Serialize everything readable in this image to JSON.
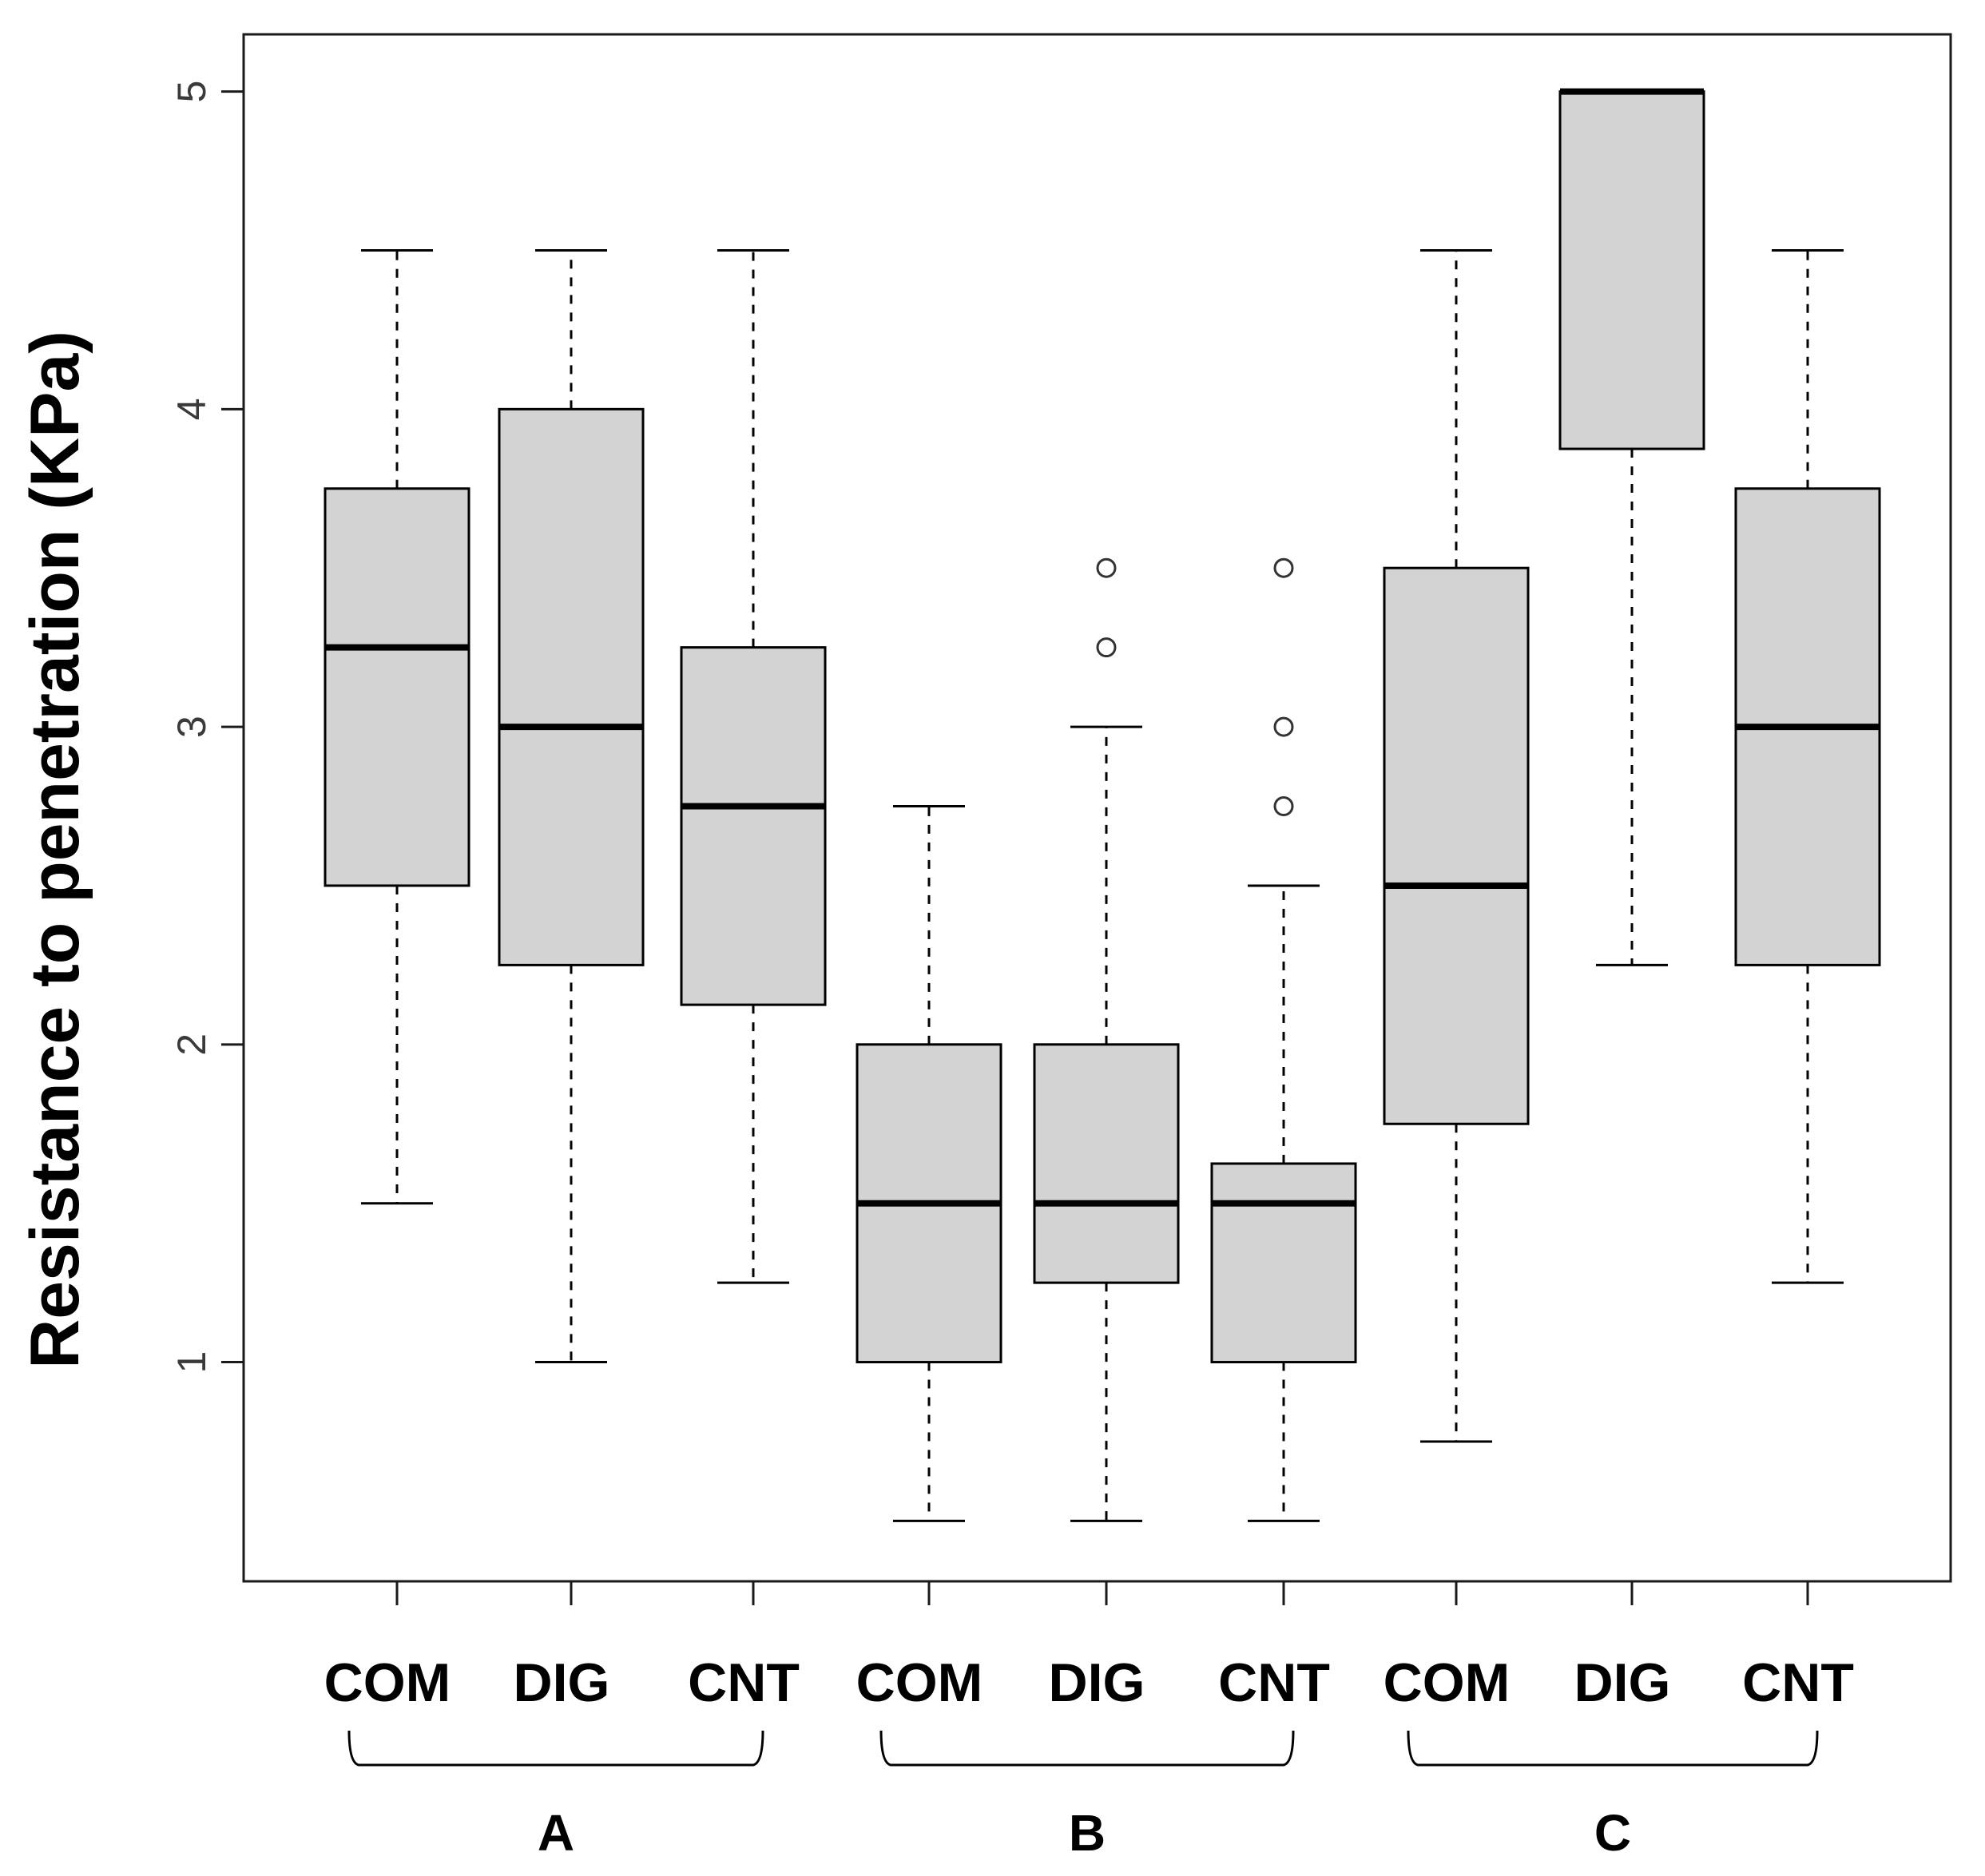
{
  "chart_data": {
    "type": "boxplot",
    "title": "",
    "xlabel": "",
    "ylabel": "Resistance to penetration (KPa)",
    "ylim": [
      0.31,
      5.18
    ],
    "yticks": [
      1,
      2,
      3,
      4,
      5
    ],
    "ytick_labels": [
      "1",
      "2",
      "3",
      "4",
      "5"
    ],
    "groups": [
      "A",
      "B",
      "C"
    ],
    "categories": [
      "COM",
      "DIG",
      "CNT",
      "COM",
      "DIG",
      "CNT",
      "COM",
      "DIG",
      "CNT"
    ],
    "boxes": [
      {
        "group": "A",
        "label": "COM",
        "min": 1.5,
        "q1": 2.5,
        "median": 3.25,
        "q3": 3.75,
        "max": 4.5,
        "outliers": []
      },
      {
        "group": "A",
        "label": "DIG",
        "min": 1.0,
        "q1": 2.25,
        "median": 3.0,
        "q3": 4.0,
        "max": 4.5,
        "outliers": []
      },
      {
        "group": "A",
        "label": "CNT",
        "min": 1.25,
        "q1": 2.125,
        "median": 2.75,
        "q3": 3.25,
        "max": 4.5,
        "outliers": []
      },
      {
        "group": "B",
        "label": "COM",
        "min": 0.5,
        "q1": 1.0,
        "median": 1.5,
        "q3": 2.0,
        "max": 2.75,
        "outliers": []
      },
      {
        "group": "B",
        "label": "DIG",
        "min": 0.5,
        "q1": 1.25,
        "median": 1.5,
        "q3": 2.0,
        "max": 3.0,
        "outliers": [
          3.25,
          3.5
        ]
      },
      {
        "group": "B",
        "label": "CNT",
        "min": 0.5,
        "q1": 1.0,
        "median": 1.5,
        "q3": 1.625,
        "max": 2.5,
        "outliers": [
          2.75,
          3.0,
          3.5
        ]
      },
      {
        "group": "C",
        "label": "COM",
        "min": 0.75,
        "q1": 1.75,
        "median": 2.5,
        "q3": 3.5,
        "max": 4.5,
        "outliers": []
      },
      {
        "group": "C",
        "label": "DIG",
        "min": 2.25,
        "q1": 3.875,
        "median": 5.0,
        "q3": 5.0,
        "max": 5.0,
        "outliers": []
      },
      {
        "group": "C",
        "label": "CNT",
        "min": 1.25,
        "q1": 2.25,
        "median": 3.0,
        "q3": 3.75,
        "max": 4.5,
        "outliers": []
      }
    ],
    "colors": {
      "box_fill": "#d3d3d3",
      "stroke": "#000000",
      "axis_text": "#3a3a3a",
      "title": "#000000"
    },
    "grid": false,
    "legend": "none"
  }
}
